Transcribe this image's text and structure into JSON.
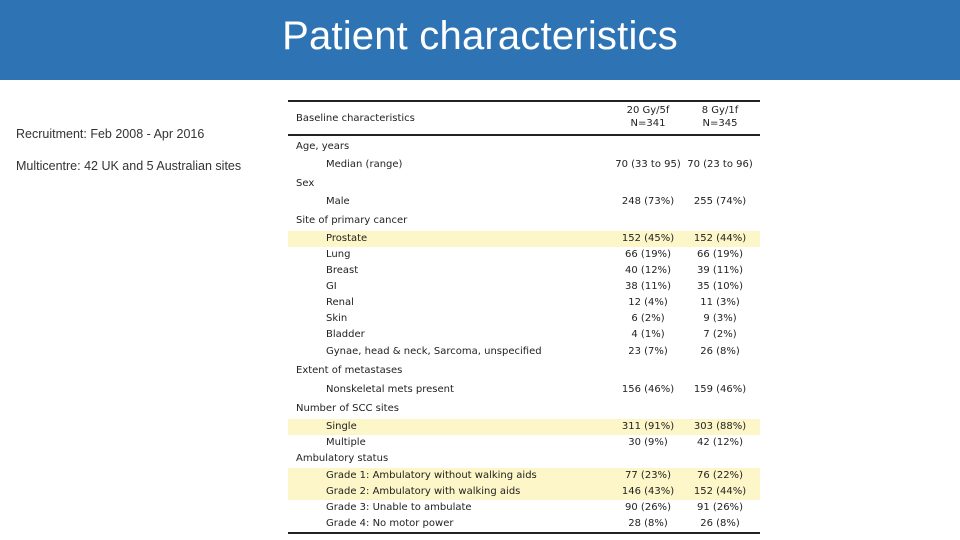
{
  "title": "Patient characteristics",
  "side_notes": [
    "Recruitment: Feb 2008 - Apr 2016",
    "Multicentre: 42 UK and 5 Australian sites"
  ],
  "table": {
    "header": {
      "label": "Baseline characteristics",
      "col1_line1": "20 Gy/5f",
      "col1_line2": "N=341",
      "col2_line1": "8 Gy/1f",
      "col2_line2": "N=345"
    },
    "rows": [
      {
        "label": "Age, years",
        "kind": "cat",
        "c1": "",
        "c2": "",
        "highlight": false
      },
      {
        "label": "Median (range)",
        "kind": "sub",
        "c1": "70 (33 to 95)",
        "c2": "70 (23 to 96)",
        "highlight": false
      },
      {
        "label": "Sex",
        "kind": "cat",
        "c1": "",
        "c2": "",
        "highlight": false
      },
      {
        "label": "Male",
        "kind": "sub",
        "c1": "248 (73%)",
        "c2": "255 (74%)",
        "highlight": false
      },
      {
        "label": "Site of primary cancer",
        "kind": "cat",
        "c1": "",
        "c2": "",
        "highlight": false
      },
      {
        "label": "Prostate",
        "kind": "sub",
        "c1": "152 (45%)",
        "c2": "152 (44%)",
        "highlight": true
      },
      {
        "label": "Lung",
        "kind": "sub",
        "c1": "66 (19%)",
        "c2": "66 (19%)",
        "highlight": false
      },
      {
        "label": "Breast",
        "kind": "sub",
        "c1": "40 (12%)",
        "c2": "39 (11%)",
        "highlight": false
      },
      {
        "label": "GI",
        "kind": "sub",
        "c1": "38 (11%)",
        "c2": "35 (10%)",
        "highlight": false
      },
      {
        "label": "Renal",
        "kind": "sub",
        "c1": "12 (4%)",
        "c2": "11 (3%)",
        "highlight": false
      },
      {
        "label": "Skin",
        "kind": "sub",
        "c1": "6 (2%)",
        "c2": "9 (3%)",
        "highlight": false
      },
      {
        "label": "Bladder",
        "kind": "sub",
        "c1": "4 (1%)",
        "c2": "7 (2%)",
        "highlight": false
      },
      {
        "label": "Gynae, head & neck, Sarcoma, unspecified",
        "kind": "sub",
        "c1": "23 (7%)",
        "c2": "26 (8%)",
        "highlight": false
      },
      {
        "label": "Extent of metastases",
        "kind": "cat",
        "c1": "",
        "c2": "",
        "highlight": false
      },
      {
        "label": "Nonskeletal mets present",
        "kind": "sub",
        "c1": "156 (46%)",
        "c2": "159 (46%)",
        "highlight": false
      },
      {
        "label": "Number of SCC sites",
        "kind": "cat",
        "c1": "",
        "c2": "",
        "highlight": false
      },
      {
        "label": "Single",
        "kind": "sub",
        "c1": "311 (91%)",
        "c2": "303 (88%)",
        "highlight": true
      },
      {
        "label": "Multiple",
        "kind": "sub",
        "c1": "30 (9%)",
        "c2": "42 (12%)",
        "highlight": false
      },
      {
        "label": "Ambulatory status",
        "kind": "cat",
        "c1": "",
        "c2": "",
        "highlight": false
      },
      {
        "label": "Grade 1: Ambulatory without walking aids",
        "kind": "sub",
        "c1": "77 (23%)",
        "c2": "76 (22%)",
        "highlight": true
      },
      {
        "label": "Grade 2: Ambulatory with walking aids",
        "kind": "sub",
        "c1": "146 (43%)",
        "c2": "152 (44%)",
        "highlight": true
      },
      {
        "label": "Grade 3: Unable to ambulate",
        "kind": "sub",
        "c1": "90 (26%)",
        "c2": "91 (26%)",
        "highlight": false
      },
      {
        "label": "Grade 4: No motor power",
        "kind": "sub",
        "c1": "28 (8%)",
        "c2": "26 (8%)",
        "highlight": false
      }
    ]
  }
}
